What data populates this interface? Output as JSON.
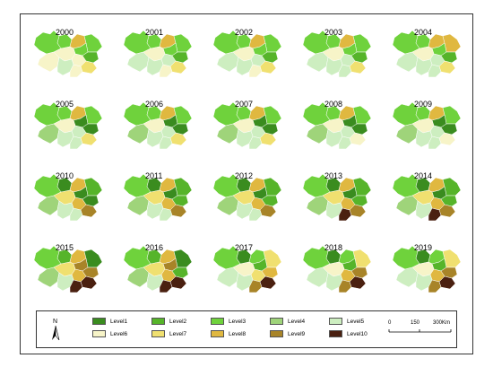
{
  "years": [
    "2000",
    "2001",
    "2002",
    "2003",
    "2004",
    "2005",
    "2006",
    "2007",
    "2008",
    "2009",
    "2010",
    "2011",
    "2012",
    "2013",
    "2014",
    "2015",
    "2016",
    "2017",
    "2018",
    "2019"
  ],
  "legend": {
    "items": [
      {
        "label": "Level1",
        "color": "#3a8c1f"
      },
      {
        "label": "Level2",
        "color": "#56b42a"
      },
      {
        "label": "Level3",
        "color": "#6fd23c"
      },
      {
        "label": "Level4",
        "color": "#9fd47a"
      },
      {
        "label": "Level5",
        "color": "#cdeec0"
      },
      {
        "label": "Level6",
        "color": "#f7f4c8"
      },
      {
        "label": "Level7",
        "color": "#f0e070"
      },
      {
        "label": "Level8",
        "color": "#e0b840"
      },
      {
        "label": "Level9",
        "color": "#a88428"
      },
      {
        "label": "Level10",
        "color": "#4a2010"
      }
    ],
    "north_label": "N",
    "scale": {
      "labels": [
        "0",
        "150",
        "300Km"
      ]
    }
  },
  "map_levels": [
    [
      3,
      3,
      8,
      3,
      3,
      6,
      6,
      6,
      5,
      2,
      7,
      6
    ],
    [
      3,
      3,
      8,
      3,
      3,
      5,
      6,
      5,
      5,
      2,
      7,
      6
    ],
    [
      3,
      3,
      8,
      3,
      3,
      5,
      6,
      5,
      5,
      2,
      7,
      6
    ],
    [
      3,
      3,
      8,
      3,
      3,
      5,
      6,
      5,
      5,
      2,
      7,
      5
    ],
    [
      3,
      3,
      8,
      8,
      3,
      5,
      6,
      5,
      5,
      2,
      7,
      5
    ],
    [
      3,
      3,
      8,
      3,
      1,
      4,
      6,
      5,
      5,
      1,
      7,
      5
    ],
    [
      3,
      3,
      8,
      3,
      1,
      4,
      6,
      5,
      5,
      1,
      7,
      5
    ],
    [
      3,
      3,
      8,
      3,
      1,
      4,
      6,
      5,
      5,
      1,
      7,
      5
    ],
    [
      3,
      3,
      8,
      3,
      1,
      4,
      6,
      5,
      5,
      1,
      6,
      5
    ],
    [
      3,
      3,
      8,
      3,
      1,
      4,
      6,
      5,
      5,
      1,
      6,
      5
    ],
    [
      3,
      1,
      8,
      2,
      1,
      4,
      7,
      8,
      5,
      1,
      9,
      5
    ],
    [
      3,
      1,
      8,
      2,
      1,
      4,
      7,
      8,
      5,
      2,
      9,
      5
    ],
    [
      3,
      1,
      8,
      2,
      1,
      4,
      7,
      8,
      5,
      2,
      9,
      5
    ],
    [
      3,
      1,
      8,
      2,
      1,
      4,
      7,
      8,
      5,
      2,
      9,
      10
    ],
    [
      3,
      1,
      8,
      2,
      1,
      4,
      7,
      8,
      5,
      2,
      9,
      10
    ],
    [
      3,
      2,
      8,
      1,
      9,
      4,
      7,
      8,
      5,
      9,
      10,
      10
    ],
    [
      3,
      2,
      8,
      1,
      9,
      4,
      7,
      8,
      5,
      2,
      10,
      10
    ],
    [
      3,
      1,
      3,
      7,
      2,
      5,
      6,
      7,
      5,
      8,
      10,
      9
    ],
    [
      3,
      1,
      3,
      7,
      2,
      5,
      6,
      8,
      5,
      9,
      10,
      9
    ],
    [
      3,
      1,
      3,
      7,
      2,
      5,
      6,
      8,
      5,
      9,
      10,
      9
    ]
  ]
}
